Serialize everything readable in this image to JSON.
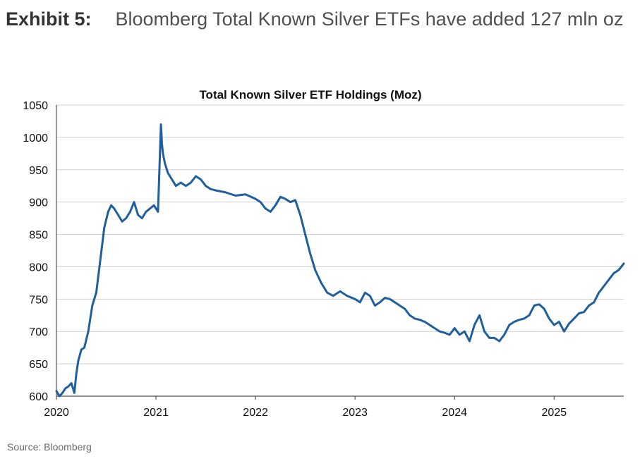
{
  "heading": {
    "label": "Exhibit 5:",
    "text": "Bloomberg Total Known Silver ETFs have added 127 mln oz"
  },
  "source": "Source: Bloomberg",
  "colors": {
    "line": "#1f5f9e",
    "grid": "#cfcfcf"
  },
  "chart_data": {
    "type": "line",
    "title": "Total Known Silver ETF Holdings (Moz)",
    "xlabel": "",
    "ylabel": "",
    "xlim": [
      2020.0,
      2025.7
    ],
    "ylim": [
      600,
      1050
    ],
    "yticks": [
      600,
      650,
      700,
      750,
      800,
      850,
      900,
      950,
      1000,
      1050
    ],
    "xticks": [
      2020,
      2021,
      2022,
      2023,
      2024,
      2025
    ],
    "xtick_labels": [
      "2020",
      "2021",
      "2022",
      "2023",
      "2024",
      "2025"
    ],
    "grid": true,
    "series": [
      {
        "name": "Total Known Silver ETF Holdings",
        "x": [
          2020.0,
          2020.03,
          2020.06,
          2020.09,
          2020.12,
          2020.15,
          2020.18,
          2020.2,
          2020.22,
          2020.25,
          2020.28,
          2020.32,
          2020.36,
          2020.4,
          2020.44,
          2020.48,
          2020.52,
          2020.55,
          2020.58,
          2020.62,
          2020.66,
          2020.7,
          2020.74,
          2020.78,
          2020.82,
          2020.86,
          2020.9,
          2020.94,
          2020.98,
          2021.02,
          2021.05,
          2021.06,
          2021.07,
          2021.09,
          2021.12,
          2021.16,
          2021.2,
          2021.25,
          2021.3,
          2021.35,
          2021.4,
          2021.45,
          2021.5,
          2021.55,
          2021.6,
          2021.7,
          2021.8,
          2021.9,
          2022.0,
          2022.05,
          2022.1,
          2022.15,
          2022.2,
          2022.25,
          2022.3,
          2022.35,
          2022.4,
          2022.45,
          2022.5,
          2022.55,
          2022.6,
          2022.66,
          2022.72,
          2022.78,
          2022.85,
          2022.92,
          2023.0,
          2023.05,
          2023.1,
          2023.15,
          2023.2,
          2023.25,
          2023.3,
          2023.35,
          2023.4,
          2023.45,
          2023.5,
          2023.55,
          2023.6,
          2023.65,
          2023.7,
          2023.75,
          2023.8,
          2023.85,
          2023.9,
          2023.95,
          2024.0,
          2024.05,
          2024.1,
          2024.15,
          2024.2,
          2024.25,
          2024.3,
          2024.35,
          2024.4,
          2024.45,
          2024.5,
          2024.55,
          2024.6,
          2024.65,
          2024.7,
          2024.75,
          2024.8,
          2024.85,
          2024.9,
          2024.95,
          2025.0,
          2025.05,
          2025.1,
          2025.15,
          2025.2,
          2025.25,
          2025.3,
          2025.35,
          2025.4,
          2025.45,
          2025.5,
          2025.55,
          2025.6,
          2025.65,
          2025.7
        ],
        "values": [
          608,
          600,
          605,
          612,
          615,
          620,
          605,
          635,
          655,
          672,
          675,
          700,
          740,
          760,
          810,
          860,
          885,
          895,
          890,
          880,
          870,
          875,
          885,
          900,
          880,
          875,
          885,
          890,
          895,
          885,
          1020,
          990,
          975,
          960,
          945,
          935,
          925,
          930,
          925,
          930,
          940,
          935,
          925,
          920,
          918,
          915,
          910,
          912,
          905,
          900,
          890,
          885,
          895,
          908,
          905,
          900,
          903,
          880,
          850,
          820,
          795,
          775,
          760,
          755,
          762,
          755,
          750,
          745,
          760,
          755,
          740,
          745,
          752,
          750,
          745,
          740,
          735,
          725,
          720,
          718,
          715,
          710,
          705,
          700,
          698,
          695,
          705,
          695,
          700,
          685,
          710,
          725,
          700,
          690,
          690,
          685,
          695,
          710,
          715,
          718,
          720,
          725,
          740,
          742,
          735,
          720,
          710,
          715,
          700,
          712,
          720,
          728,
          730,
          740,
          745,
          760,
          770,
          780,
          790,
          795,
          805
        ]
      }
    ]
  }
}
